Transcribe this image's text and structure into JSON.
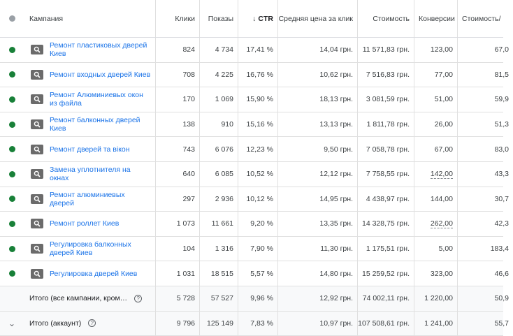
{
  "columns": {
    "campaign": "Кампания",
    "clicks": "Клики",
    "impressions": "Показы",
    "ctr": "CTR",
    "avg_cpc": "Средняя цена за клик",
    "cost": "Стоимость",
    "conversions": "Конверсии",
    "cost_per_conv": "Стоимость/"
  },
  "status_colors": {
    "enabled": "#188038",
    "header": "#9aa0a6"
  },
  "rows": [
    {
      "name": "Ремонт пластиковых дверей Киев",
      "clicks": "824",
      "impressions": "4 734",
      "ctr": "17,41 %",
      "avg_cpc": "14,04 грн.",
      "cost": "11 571,83 грн.",
      "conversions": "123,00",
      "cost_per_conv": "67,0"
    },
    {
      "name": "Ремонт входных дверей Киев",
      "clicks": "708",
      "impressions": "4 225",
      "ctr": "16,76 %",
      "avg_cpc": "10,62 грн.",
      "cost": "7 516,83 грн.",
      "conversions": "77,00",
      "cost_per_conv": "81,5"
    },
    {
      "name": "Ремонт Алюминиевых окон из файла",
      "clicks": "170",
      "impressions": "1 069",
      "ctr": "15,90 %",
      "avg_cpc": "18,13 грн.",
      "cost": "3 081,59 грн.",
      "conversions": "51,00",
      "cost_per_conv": "59,9"
    },
    {
      "name": "Ремонт балконных дверей Киев",
      "clicks": "138",
      "impressions": "910",
      "ctr": "15,16 %",
      "avg_cpc": "13,13 грн.",
      "cost": "1 811,78 грн.",
      "conversions": "26,00",
      "cost_per_conv": "51,3"
    },
    {
      "name": "Ремонт дверей та вікон",
      "clicks": "743",
      "impressions": "6 076",
      "ctr": "12,23 %",
      "avg_cpc": "9,50 грн.",
      "cost": "7 058,78 грн.",
      "conversions": "67,00",
      "cost_per_conv": "83,0"
    },
    {
      "name": "Замена уплотнителя на окнах",
      "clicks": "640",
      "impressions": "6 085",
      "ctr": "10,52 %",
      "avg_cpc": "12,12 грн.",
      "cost": "7 758,55 грн.",
      "conversions": "142,00",
      "cost_per_conv": "43,3"
    },
    {
      "name": "Ремонт алюминиевых дверей",
      "clicks": "297",
      "impressions": "2 936",
      "ctr": "10,12 %",
      "avg_cpc": "14,95 грн.",
      "cost": "4 438,97 грн.",
      "conversions": "144,00",
      "cost_per_conv": "30,7"
    },
    {
      "name": "Ремонт роллет Киев",
      "clicks": "1 073",
      "impressions": "11 661",
      "ctr": "9,20 %",
      "avg_cpc": "13,35 грн.",
      "cost": "14 328,75 грн.",
      "conversions": "262,00",
      "cost_per_conv": "42,3"
    },
    {
      "name": "Регулировка балконных дверей Киев",
      "clicks": "104",
      "impressions": "1 316",
      "ctr": "7,90 %",
      "avg_cpc": "11,30 грн.",
      "cost": "1 175,51 грн.",
      "conversions": "5,00",
      "cost_per_conv": "183,4"
    },
    {
      "name": "Регулировка дверей Киев",
      "clicks": "1 031",
      "impressions": "18 515",
      "ctr": "5,57 %",
      "avg_cpc": "14,80 грн.",
      "cost": "15 259,52 грн.",
      "conversions": "323,00",
      "cost_per_conv": "46,6"
    }
  ],
  "totals": [
    {
      "label": "Итого (все кампании, кром…",
      "clicks": "5 728",
      "impressions": "57 527",
      "ctr": "9,96 %",
      "avg_cpc": "12,92 грн.",
      "cost": "74 002,11 грн.",
      "conversions": "1 220,00",
      "cost_per_conv": "50,9"
    },
    {
      "label": "Итого (аккаунт)",
      "clicks": "9 796",
      "impressions": "125 149",
      "ctr": "7,83 %",
      "avg_cpc": "10,97 грн.",
      "cost": "107 508,61 грн.",
      "conversions": "1 241,00",
      "cost_per_conv": "55,7"
    }
  ]
}
